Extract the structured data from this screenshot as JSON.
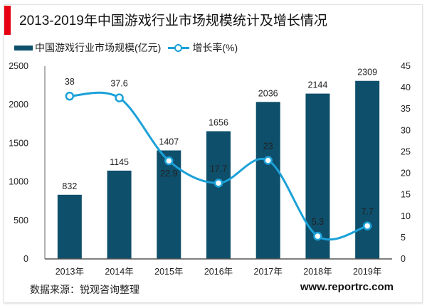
{
  "title": "2013-2019年中国游戏行业市场规模统计及增长情况",
  "source": "数据来源：锐观咨询整理",
  "website": "www.reportrc.com",
  "colors": {
    "accent": "#e60012",
    "bar": "#0e4f6b",
    "line": "#1ba1d8"
  },
  "chart_data": {
    "type": "bar+line",
    "categories": [
      "2013年",
      "2014年",
      "2015年",
      "2016年",
      "2017年",
      "2018年",
      "2019年"
    ],
    "series": [
      {
        "name": "中国游戏行业市场规模(亿元)",
        "type": "bar",
        "axis": "left",
        "values": [
          832,
          1145,
          1407,
          1656,
          2036,
          2144,
          2309
        ],
        "labels": [
          "832",
          "1145",
          "1407",
          "1656",
          "2036",
          "2144",
          "2309"
        ]
      },
      {
        "name": "增长率(%)",
        "type": "line",
        "axis": "right",
        "smooth": true,
        "values": [
          38,
          37.6,
          22.9,
          17.7,
          23,
          5.3,
          7.7
        ],
        "labels": [
          "38",
          "37.6",
          "22.9",
          "17.7",
          "23",
          "5.3",
          "7.7"
        ]
      }
    ],
    "y_left": {
      "range": [
        0,
        2500
      ],
      "ticks": [
        "0",
        "500",
        "1000",
        "1500",
        "2000",
        "2500"
      ]
    },
    "y_right": {
      "range": [
        0,
        45
      ],
      "ticks": [
        "0",
        "5",
        "10",
        "15",
        "20",
        "25",
        "30",
        "35",
        "40",
        "45"
      ]
    },
    "grid": false,
    "legend_position": "top-left"
  }
}
